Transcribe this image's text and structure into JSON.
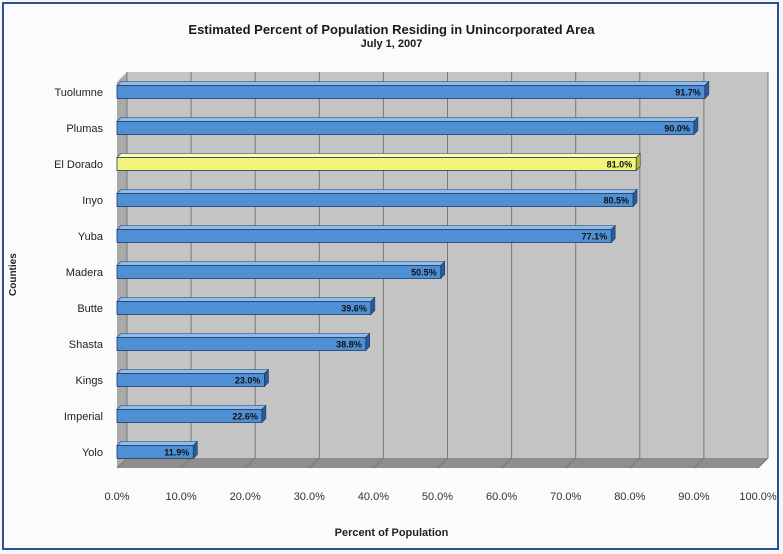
{
  "chart_data": {
    "type": "bar",
    "orientation": "horizontal",
    "title": "Estimated Percent of Population Residing in Unincorporated Area",
    "subtitle": "July 1, 2007",
    "xlabel": "Percent of Population",
    "ylabel": "Counties",
    "xlim": [
      0,
      100
    ],
    "x_ticks": [
      "0.0%",
      "10.0%",
      "20.0%",
      "30.0%",
      "40.0%",
      "50.0%",
      "60.0%",
      "70.0%",
      "80.0%",
      "90.0%",
      "100.0%"
    ],
    "categories": [
      "Tuolumne",
      "Plumas",
      "El Dorado",
      "Inyo",
      "Yuba",
      "Madera",
      "Butte",
      "Shasta",
      "Kings",
      "Imperial",
      "Yolo"
    ],
    "values": [
      91.7,
      90.0,
      81.0,
      80.5,
      77.1,
      50.5,
      39.6,
      38.8,
      23.0,
      22.6,
      11.9
    ],
    "data_labels": [
      "91.7%",
      "90.0%",
      "81.0%",
      "80.5%",
      "77.1%",
      "50.5%",
      "39.6%",
      "38.8%",
      "23.0%",
      "22.6%",
      "11.9%"
    ],
    "highlight": "El Dorado",
    "grid": true,
    "colors": {
      "bar": "#4f8fd4",
      "highlight": "#f3f27a",
      "wall": "#c3c4c3",
      "floor": "#8e8e8e"
    }
  }
}
